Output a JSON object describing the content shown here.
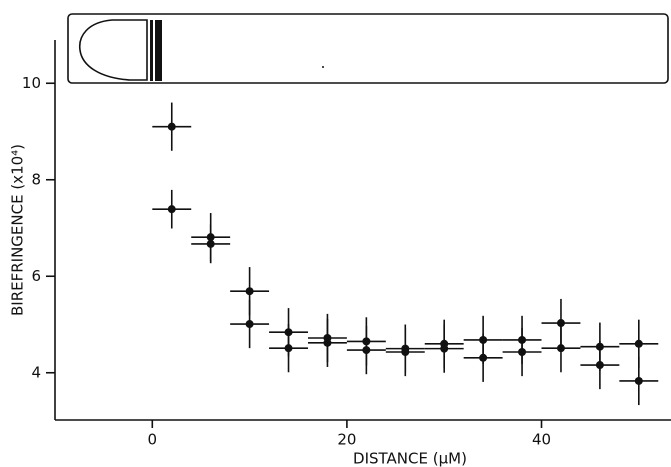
{
  "chart_data": {
    "type": "scatter",
    "x_label": "DISTANCE (μM)",
    "y_label": "BIREFRINGENCE (x10⁴)",
    "color": "#111111",
    "x": [
      2,
      2,
      6,
      6,
      10,
      10,
      14,
      14,
      18,
      18,
      22,
      22,
      26,
      26,
      30,
      30,
      34,
      34,
      38,
      38,
      42,
      42,
      46,
      46,
      50,
      50
    ],
    "values": [
      9.1,
      7.39,
      6.81,
      6.67,
      5.69,
      5.01,
      4.84,
      4.51,
      4.72,
      4.62,
      4.65,
      4.47,
      4.5,
      4.43,
      4.6,
      4.5,
      4.68,
      4.31,
      4.68,
      4.43,
      5.03,
      4.51,
      4.54,
      4.16,
      4.6,
      3.83
    ],
    "xerr": [
      2,
      2,
      2,
      2,
      2,
      2,
      2,
      2,
      2,
      2,
      2,
      2,
      2,
      2,
      2,
      2,
      2,
      2,
      2,
      2,
      2,
      2,
      2,
      2,
      2,
      2
    ],
    "yerr": [
      0.5,
      0.4,
      0.5,
      0.4,
      0.5,
      0.5,
      0.5,
      0.5,
      0.5,
      0.5,
      0.5,
      0.5,
      0.5,
      0.5,
      0.5,
      0.5,
      0.5,
      0.5,
      0.5,
      0.5,
      0.5,
      0.5,
      0.5,
      0.5,
      0.5,
      0.5
    ],
    "xlim": [
      -10,
      53
    ],
    "ylim": [
      3,
      11
    ],
    "xticks": [
      0,
      20,
      40
    ],
    "yticks": [
      4,
      6,
      8,
      10
    ]
  }
}
